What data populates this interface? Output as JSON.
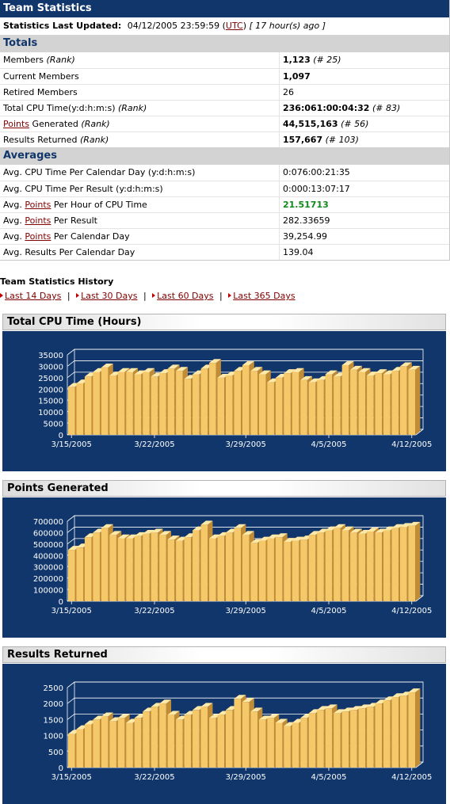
{
  "header": {
    "title": "Team Statistics"
  },
  "updated": {
    "label": "Statistics Last Updated:",
    "datetime": "04/12/2005 23:59:59",
    "tz_open": "(",
    "tz_link": "UTC",
    "tz_close": ")",
    "ago": "[ 17 hour(s) ago ]"
  },
  "totals": {
    "heading": "Totals",
    "members_label": "Members",
    "members_rank_label": "(Rank)",
    "members_value": "1,123",
    "members_rank": "(# 25)",
    "current_label": "Current Members",
    "current_value": "1,097",
    "retired_label": "Retired Members",
    "retired_value": "26",
    "cpu_label": "Total CPU Time(y:d:h:m:s)",
    "cpu_rank_label": "(Rank)",
    "cpu_value": "236:061:00:04:32",
    "cpu_rank": "(# 83)",
    "points_link": "Points",
    "points_label": "Generated",
    "points_rank_label": "(Rank)",
    "points_value": "44,515,163",
    "points_rank": "(# 56)",
    "results_label": "Results Returned",
    "results_rank_label": "(Rank)",
    "results_value": "157,667",
    "results_rank": "(# 103)"
  },
  "averages": {
    "heading": "Averages",
    "cpu_day_label": "Avg. CPU Time Per Calendar Day (y:d:h:m:s)",
    "cpu_day_value": "0:076:00:21:35",
    "cpu_result_label": "Avg. CPU Time Per Result (y:d:h:m:s)",
    "cpu_result_value": "0:000:13:07:17",
    "avg_prefix": "Avg.",
    "points_link": "Points",
    "pts_hour_suffix": "Per Hour of CPU Time",
    "pts_hour_value": "21.51713",
    "pts_result_suffix": "Per Result",
    "pts_result_value": "282.33659",
    "pts_day_suffix": "Per Calendar Day",
    "pts_day_value": "39,254.99",
    "results_day_label": "Avg. Results Per Calendar Day",
    "results_day_value": "139.04"
  },
  "history": {
    "title": "Team Statistics History",
    "links": [
      "Last 14 Days",
      "Last 30 Days",
      "Last 60 Days",
      "Last 365 Days"
    ],
    "separator": "|"
  },
  "colors": {
    "navy": "#10366b",
    "bar_front": "#f5c86a",
    "bar_top": "#ffe9a8",
    "bar_side": "#c18c33",
    "link": "#800000",
    "green": "#12891b"
  },
  "chart_data": [
    {
      "type": "bar",
      "title": "Total CPU Time (Hours)",
      "ylim": [
        0,
        35000
      ],
      "yticks": [
        "0",
        "5000",
        "10000",
        "15000",
        "20000",
        "25000",
        "30000",
        "35000"
      ],
      "xticks": [
        "3/15/2005",
        "3/22/2005",
        "3/29/2005",
        "4/5/2005",
        "4/12/2005"
      ],
      "values": [
        21000,
        22500,
        25500,
        27500,
        29500,
        26000,
        27500,
        27500,
        26500,
        27500,
        25500,
        27000,
        29000,
        28000,
        24500,
        26500,
        29000,
        31500,
        25000,
        26000,
        28000,
        30500,
        28000,
        26500,
        23000,
        25000,
        27000,
        27500,
        24000,
        23000,
        24000,
        26500,
        25500,
        30500,
        28500,
        27500,
        26000,
        27000,
        26500,
        28000,
        30000,
        28500
      ]
    },
    {
      "type": "bar",
      "title": "Points Generated",
      "ylim": [
        0,
        700000
      ],
      "yticks": [
        "0",
        "100000",
        "200000",
        "300000",
        "400000",
        "500000",
        "600000",
        "700000"
      ],
      "xticks": [
        "3/15/2005",
        "3/22/2005",
        "3/29/2005",
        "4/5/2005",
        "4/12/2005"
      ],
      "values": [
        450000,
        470000,
        560000,
        600000,
        640000,
        580000,
        550000,
        550000,
        570000,
        590000,
        600000,
        580000,
        540000,
        530000,
        560000,
        620000,
        670000,
        550000,
        570000,
        600000,
        640000,
        580000,
        510000,
        530000,
        550000,
        560000,
        520000,
        530000,
        540000,
        580000,
        600000,
        620000,
        640000,
        620000,
        600000,
        590000,
        610000,
        600000,
        620000,
        640000,
        650000,
        660000
      ]
    },
    {
      "type": "bar",
      "title": "Results Returned",
      "ylim": [
        0,
        2500
      ],
      "yticks": [
        "0",
        "500",
        "1000",
        "1500",
        "2000",
        "2500"
      ],
      "xticks": [
        "3/15/2005",
        "3/22/2005",
        "3/29/2005",
        "4/5/2005",
        "4/12/2005"
      ],
      "values": [
        1050,
        1200,
        1350,
        1500,
        1600,
        1450,
        1550,
        1400,
        1550,
        1750,
        1900,
        2000,
        1650,
        1500,
        1650,
        1800,
        1900,
        1550,
        1650,
        1800,
        2150,
        2050,
        1750,
        1500,
        1550,
        1400,
        1300,
        1400,
        1550,
        1700,
        1800,
        1850,
        1700,
        1750,
        1800,
        1850,
        1900,
        2000,
        2100,
        2200,
        2250,
        2350
      ]
    }
  ]
}
